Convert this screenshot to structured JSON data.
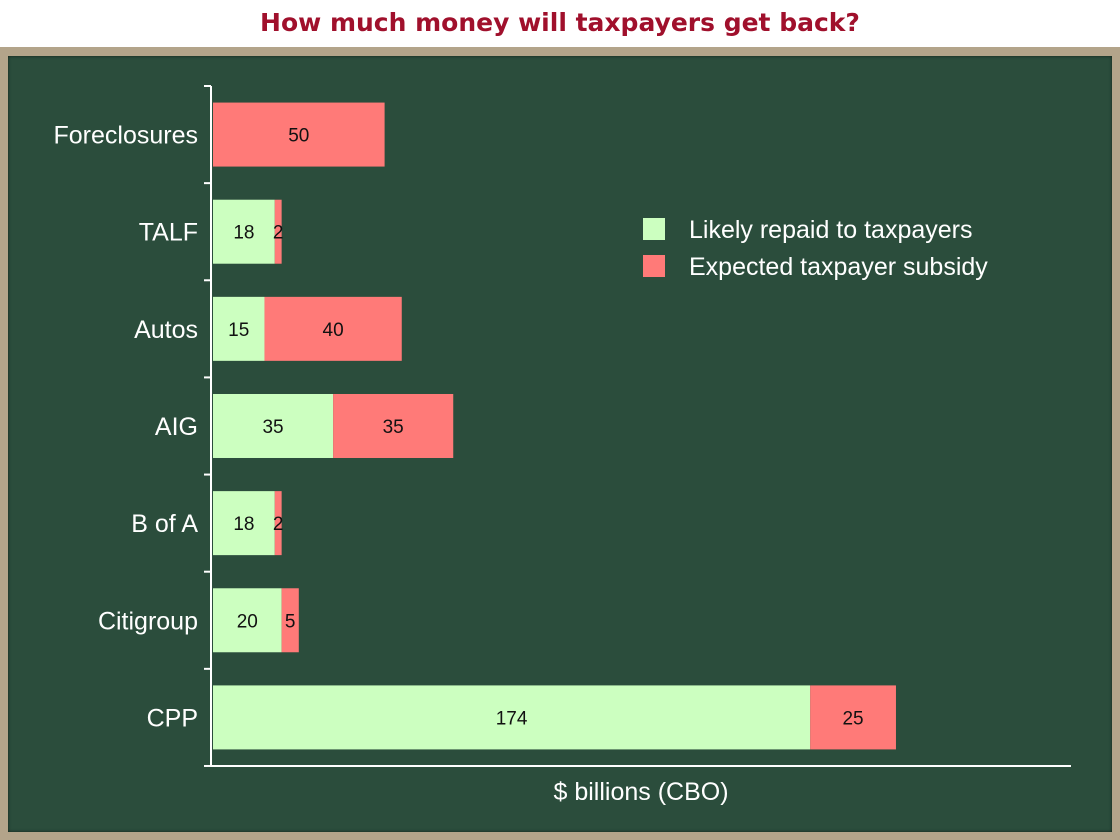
{
  "title": "How much money will taxpayers get back?",
  "chart_data": {
    "type": "bar",
    "orientation": "horizontal",
    "stacked": true,
    "categories": [
      "Foreclosures",
      "TALF",
      "Autos",
      "AIG",
      "B of A",
      "Citigroup",
      "CPP"
    ],
    "series": [
      {
        "name": "Likely repaid to taxpayers",
        "values": [
          0,
          18,
          15,
          35,
          18,
          20,
          174
        ],
        "color": "#ccffc0"
      },
      {
        "name": "Expected taxpayer subsidy",
        "values": [
          50,
          2,
          40,
          35,
          2,
          5,
          25
        ],
        "color": "#ff7a78"
      }
    ],
    "xlabel": "$ billions (CBO)",
    "ylabel": "",
    "xlim": [
      0,
      250
    ],
    "grid": false,
    "legend_position": "top-right"
  }
}
